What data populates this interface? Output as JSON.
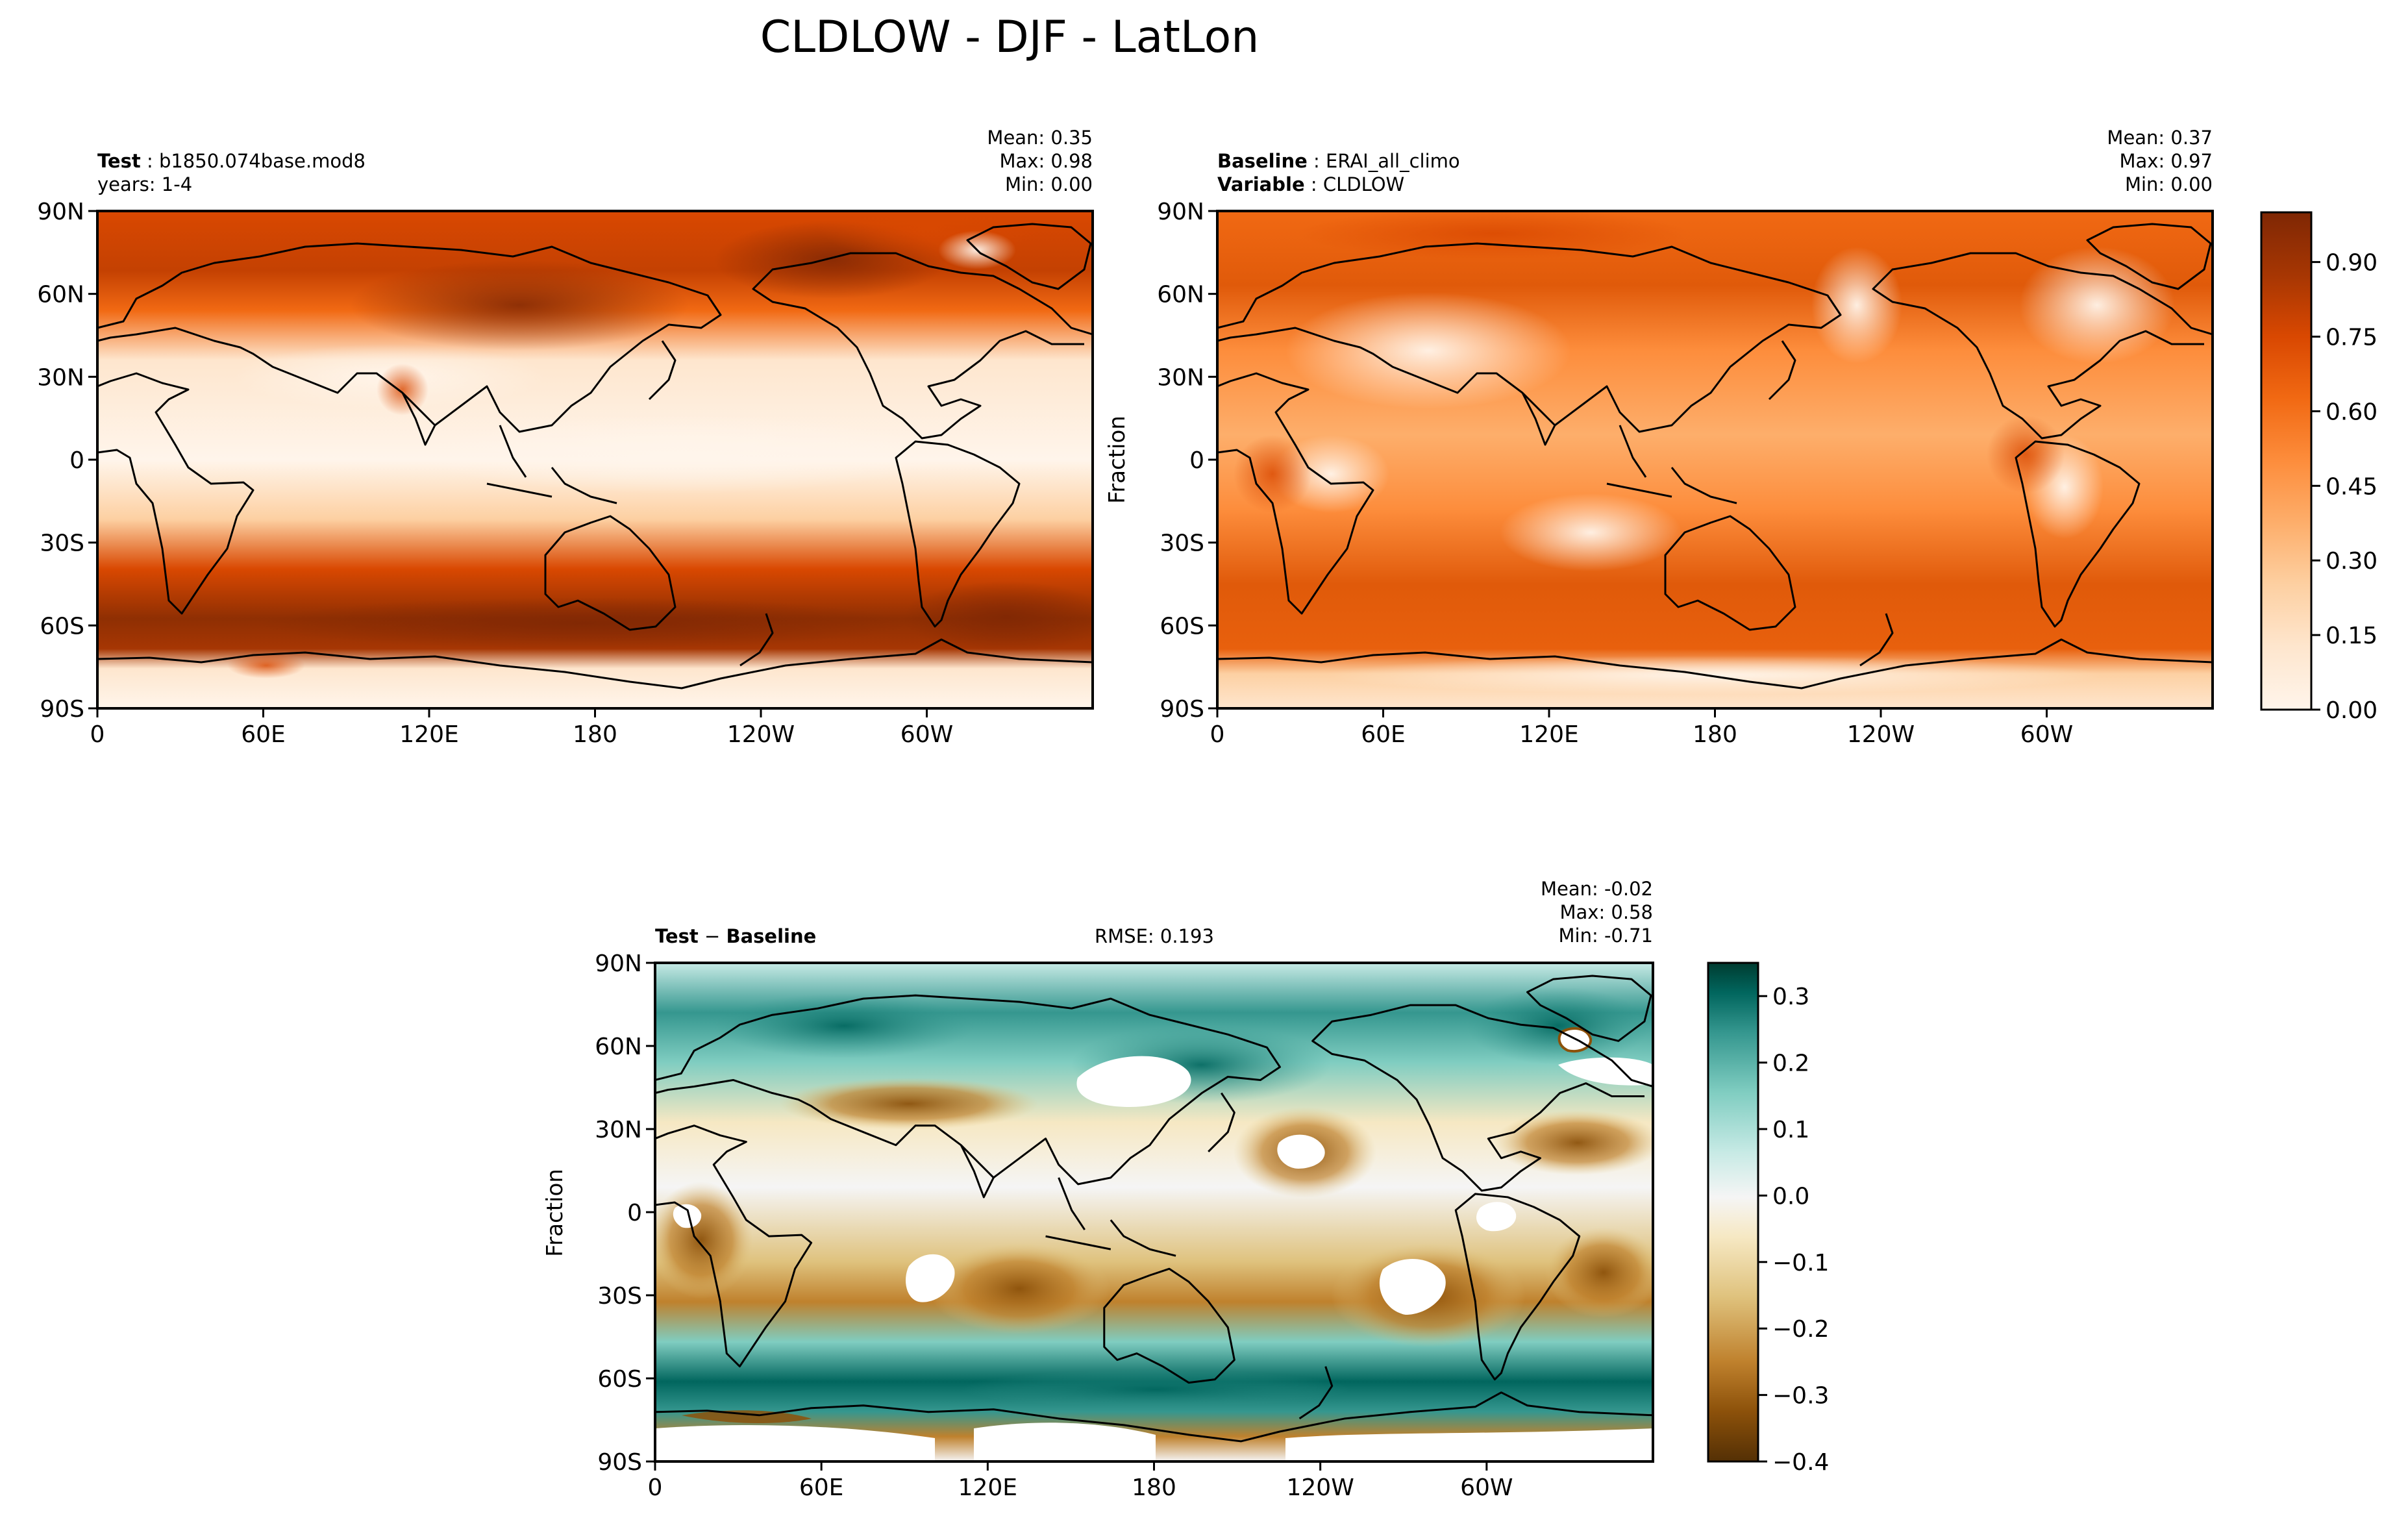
{
  "figure": {
    "title": "CLDLOW - DJF - LatLon",
    "colors": {
      "orange_ramp": [
        "#fff5eb",
        "#fee6ce",
        "#fdd0a2",
        "#fdae6b",
        "#fd8d3c",
        "#f16913",
        "#d94801",
        "#a63603",
        "#7f2704"
      ],
      "diverging": [
        "#543005",
        "#8c510a",
        "#bf812d",
        "#dfc27d",
        "#f6e8c3",
        "#f5f5f5",
        "#c7eae5",
        "#80cdc1",
        "#35978f",
        "#01665e",
        "#003c30"
      ],
      "land_outline": "#000000",
      "frame": "#000000"
    }
  },
  "panels": {
    "test": {
      "label_bold": "Test",
      "label_text": "b1850.074base.mod8",
      "line2": "years: 1-4",
      "stats": {
        "mean": "Mean:  0.35",
        "max": "Max:  0.98",
        "min": "Min:  0.00"
      }
    },
    "baseline": {
      "label_bold": "Baseline",
      "label_text": "ERAI_all_climo",
      "label2_bold": "Variable",
      "label2_text": "CLDLOW",
      "ylabel": "Fraction",
      "stats": {
        "mean": "Mean:  0.37",
        "max": "Max:  0.97",
        "min": "Min:  0.00"
      }
    },
    "diff": {
      "label_bold": "Test",
      "label_op": "−",
      "label_bold2": "Baseline",
      "rmse": "RMSE: 0.193",
      "ylabel": "Fraction",
      "stats": {
        "mean": "Mean: -0.02",
        "max": "Max:  0.58",
        "min": "Min: -0.71"
      }
    }
  },
  "chart_data": [
    {
      "type": "heatmap",
      "title": "Test",
      "variable": "CLDLOW",
      "units": "Fraction",
      "x_ticks": [
        "0",
        "60E",
        "120E",
        "180",
        "120W",
        "60W"
      ],
      "x_tick_values": [
        0,
        60,
        120,
        180,
        240,
        300
      ],
      "xlim": [
        0,
        360
      ],
      "y_ticks": [
        "90N",
        "60N",
        "30N",
        "0",
        "30S",
        "60S",
        "90S"
      ],
      "y_tick_values": [
        90,
        60,
        30,
        0,
        -30,
        -60,
        -90
      ],
      "ylim": [
        -90,
        90
      ],
      "stats": {
        "mean": 0.35,
        "max": 0.98,
        "min": 0.0
      },
      "colorbar": {
        "range": [
          0,
          1
        ],
        "ticks": [
          "0.00",
          "0.15",
          "0.30",
          "0.45",
          "0.60",
          "0.75",
          "0.90"
        ],
        "tick_values": [
          0,
          0.15,
          0.3,
          0.45,
          0.6,
          0.75,
          0.9
        ]
      }
    },
    {
      "type": "heatmap",
      "title": "Baseline",
      "variable": "CLDLOW",
      "units": "Fraction",
      "x_ticks": [
        "0",
        "60E",
        "120E",
        "180",
        "120W",
        "60W"
      ],
      "x_tick_values": [
        0,
        60,
        120,
        180,
        240,
        300
      ],
      "xlim": [
        0,
        360
      ],
      "y_ticks": [
        "90N",
        "60N",
        "30N",
        "0",
        "30S",
        "60S",
        "90S"
      ],
      "y_tick_values": [
        90,
        60,
        30,
        0,
        -30,
        -60,
        -90
      ],
      "ylim": [
        -90,
        90
      ],
      "stats": {
        "mean": 0.37,
        "max": 0.97,
        "min": 0.0
      }
    },
    {
      "type": "heatmap",
      "title": "Test − Baseline",
      "units": "Fraction",
      "rmse": 0.193,
      "x_ticks": [
        "0",
        "60E",
        "120E",
        "180",
        "120W",
        "60W"
      ],
      "x_tick_values": [
        0,
        60,
        120,
        180,
        240,
        300
      ],
      "xlim": [
        0,
        360
      ],
      "y_ticks": [
        "90N",
        "60N",
        "30N",
        "0",
        "30S",
        "60S",
        "90S"
      ],
      "y_tick_values": [
        90,
        60,
        30,
        0,
        -30,
        -60,
        -90
      ],
      "ylim": [
        -90,
        90
      ],
      "stats": {
        "mean": -0.02,
        "max": 0.58,
        "min": -0.71
      },
      "colorbar": {
        "range": [
          -0.4,
          0.35
        ],
        "ticks": [
          "−0.4",
          "−0.3",
          "−0.2",
          "−0.1",
          "0.0",
          "0.1",
          "0.2",
          "0.3"
        ],
        "tick_values": [
          -0.4,
          -0.3,
          -0.2,
          -0.1,
          0.0,
          0.1,
          0.2,
          0.3
        ]
      }
    }
  ]
}
